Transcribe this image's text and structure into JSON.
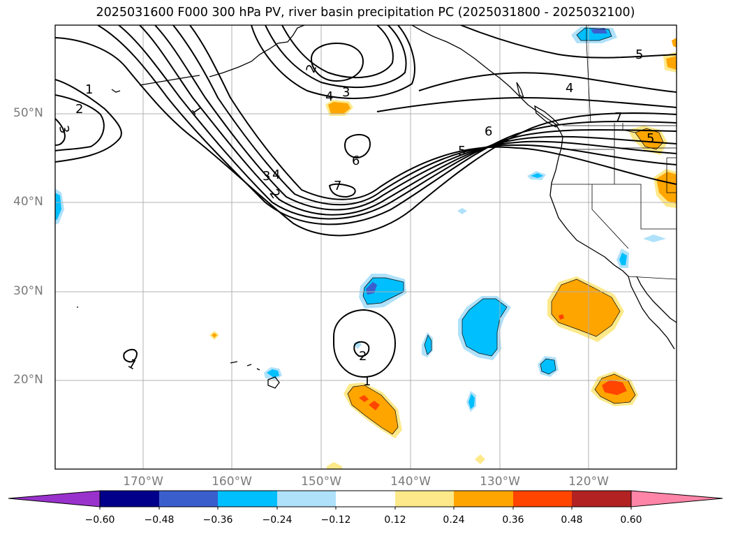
{
  "title": "2025031600 F000 300 hPa PV, river basin precipitation PC (2025031800 - 2025032100)",
  "lat_labels": [
    "50°N",
    "40°N",
    "30°N",
    "20°N"
  ],
  "lon_labels": [
    "170°W",
    "160°W",
    "150°W",
    "140°W",
    "130°W",
    "120°W"
  ],
  "contour_labels": [
    "1",
    "2",
    "3",
    "2",
    "4",
    "3",
    "1",
    "5",
    "4",
    "6",
    "5",
    "6",
    "7",
    "3",
    "4",
    "2",
    "7",
    "2",
    "1",
    "1",
    "5"
  ],
  "colorbar": {
    "ticks": [
      "−0.60",
      "−0.48",
      "−0.36",
      "−0.24",
      "−0.12",
      "0.12",
      "0.24",
      "0.36",
      "0.48",
      "0.60"
    ],
    "colors": [
      "#9932cc",
      "#00008b",
      "#3a5fcd",
      "#00bfff",
      "#afe1fa",
      "#ffffff",
      "#fde98a",
      "#ffa500",
      "#ff4500",
      "#b22222",
      "#ff85a8"
    ]
  },
  "colors": {
    "contour": "#000000",
    "coast": "#000000",
    "grid": "#b0b0b0",
    "tick_label": "#7a7a7a"
  }
}
